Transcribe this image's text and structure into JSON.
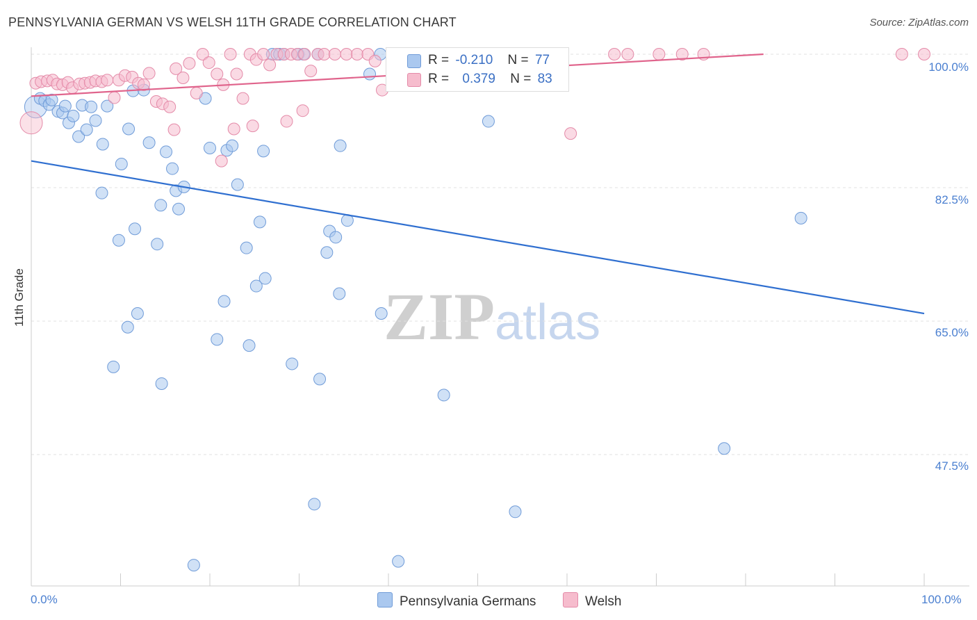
{
  "title": "PENNSYLVANIA GERMAN VS WELSH 11TH GRADE CORRELATION CHART",
  "source": "Source: ZipAtlas.com",
  "watermark": {
    "zip": "ZIP",
    "atlas": "atlas"
  },
  "legend": {
    "rows": [
      {
        "r_label": "R =",
        "r_value": "-0.210",
        "n_label": "N =",
        "n_value": "77"
      },
      {
        "r_label": "R =",
        "r_value": "0.379",
        "n_label": "N =",
        "n_value": "83"
      }
    ]
  },
  "bottom_legend": [
    "Pennsylvania Germans",
    "Welsh"
  ],
  "colors": {
    "blue_fill": "#aac8ef",
    "blue_stroke": "#6f9bd8",
    "blue_line": "#2f6fd0",
    "pink_fill": "#f6bccd",
    "pink_stroke": "#e48aa8",
    "pink_line": "#e0648c",
    "grid": "#e0e0e0",
    "tick_text": "#4a7fd0"
  },
  "chart_data": {
    "type": "scatter",
    "title": "PENNSYLVANIA GERMAN VS WELSH 11TH GRADE CORRELATION CHART",
    "xlabel": "",
    "ylabel": "11th Grade",
    "xlim": [
      0,
      100
    ],
    "ylim": [
      30,
      101
    ],
    "x_tick_labels": [
      "0.0%",
      "100.0%"
    ],
    "y_ticks": [
      100.0,
      82.5,
      65.0,
      47.5
    ],
    "y_tick_labels": [
      "100.0%",
      "82.5%",
      "65.0%",
      "47.5%"
    ],
    "grid": true,
    "legend_position": "top-center",
    "series": [
      {
        "name": "Pennsylvania Germans",
        "r": -0.21,
        "n": 77,
        "trend": {
          "x": [
            0,
            100
          ],
          "y": [
            86.0,
            66.0
          ]
        },
        "points": [
          [
            0.5,
            93.1
          ],
          [
            1.0,
            94.2
          ],
          [
            1.5,
            93.9
          ],
          [
            2.0,
            93.4
          ],
          [
            2.3,
            94.0
          ],
          [
            3.0,
            92.5
          ],
          [
            3.5,
            92.3
          ],
          [
            3.8,
            93.2
          ],
          [
            4.2,
            91.0
          ],
          [
            4.7,
            91.9
          ],
          [
            5.3,
            89.2
          ],
          [
            5.7,
            93.3
          ],
          [
            6.2,
            90.1
          ],
          [
            6.7,
            93.1
          ],
          [
            7.2,
            91.3
          ],
          [
            8.0,
            88.2
          ],
          [
            8.5,
            93.2
          ],
          [
            7.9,
            81.8
          ],
          [
            10.1,
            85.6
          ],
          [
            10.9,
            90.2
          ],
          [
            11.4,
            95.2
          ],
          [
            12.6,
            95.3
          ],
          [
            13.2,
            88.4
          ],
          [
            15.1,
            87.2
          ],
          [
            15.8,
            85.0
          ],
          [
            16.2,
            82.1
          ],
          [
            17.1,
            82.6
          ],
          [
            19.5,
            94.2
          ],
          [
            20.0,
            87.7
          ],
          [
            21.9,
            87.4
          ],
          [
            22.5,
            88.0
          ],
          [
            23.1,
            82.9
          ],
          [
            26.0,
            87.3
          ],
          [
            24.1,
            74.6
          ],
          [
            25.2,
            69.6
          ],
          [
            25.6,
            78.0
          ],
          [
            26.2,
            70.6
          ],
          [
            27.0,
            100.0
          ],
          [
            27.8,
            100.0
          ],
          [
            28.3,
            100.0
          ],
          [
            29.9,
            100.0
          ],
          [
            30.5,
            100.0
          ],
          [
            32.1,
            100.0
          ],
          [
            33.4,
            76.8
          ],
          [
            34.1,
            76.0
          ],
          [
            33.1,
            74.0
          ],
          [
            34.5,
            68.6
          ],
          [
            34.6,
            88.0
          ],
          [
            35.4,
            78.2
          ],
          [
            37.9,
            97.4
          ],
          [
            39.1,
            100.0
          ],
          [
            44.2,
            100.0
          ],
          [
            47.0,
            100.0
          ],
          [
            48.7,
            100.0
          ],
          [
            51.2,
            91.2
          ],
          [
            58.5,
            100.0
          ],
          [
            86.2,
            78.5
          ],
          [
            14.5,
            80.2
          ],
          [
            16.5,
            79.7
          ],
          [
            9.8,
            75.6
          ],
          [
            11.6,
            77.1
          ],
          [
            14.1,
            75.1
          ],
          [
            14.6,
            56.8
          ],
          [
            11.9,
            66.0
          ],
          [
            10.8,
            64.2
          ],
          [
            9.2,
            59.0
          ],
          [
            21.6,
            67.6
          ],
          [
            20.8,
            62.6
          ],
          [
            24.4,
            61.8
          ],
          [
            29.2,
            59.4
          ],
          [
            32.3,
            57.4
          ],
          [
            39.2,
            66.0
          ],
          [
            46.2,
            55.3
          ],
          [
            77.6,
            48.3
          ],
          [
            31.7,
            41.0
          ],
          [
            54.2,
            40.0
          ],
          [
            41.1,
            33.5
          ],
          [
            18.2,
            33.0
          ]
        ]
      },
      {
        "name": "Welsh",
        "r": 0.379,
        "n": 83,
        "trend": {
          "x": [
            0,
            82
          ],
          "y": [
            94.5,
            100.0
          ]
        },
        "points": [
          [
            0.0,
            91.0
          ],
          [
            0.5,
            96.2
          ],
          [
            1.1,
            96.4
          ],
          [
            1.8,
            96.5
          ],
          [
            2.4,
            96.6
          ],
          [
            2.9,
            96.1
          ],
          [
            3.5,
            96.0
          ],
          [
            4.1,
            96.3
          ],
          [
            4.6,
            95.6
          ],
          [
            5.4,
            96.1
          ],
          [
            6.0,
            96.2
          ],
          [
            6.6,
            96.3
          ],
          [
            7.2,
            96.5
          ],
          [
            7.9,
            96.4
          ],
          [
            8.5,
            96.6
          ],
          [
            9.3,
            94.3
          ],
          [
            9.8,
            96.6
          ],
          [
            10.5,
            97.2
          ],
          [
            11.3,
            97.0
          ],
          [
            12.0,
            96.2
          ],
          [
            12.6,
            96.0
          ],
          [
            13.2,
            97.5
          ],
          [
            14.0,
            93.8
          ],
          [
            14.7,
            93.5
          ],
          [
            15.5,
            93.1
          ],
          [
            16.2,
            98.1
          ],
          [
            17.0,
            96.9
          ],
          [
            17.7,
            98.8
          ],
          [
            18.5,
            94.9
          ],
          [
            19.2,
            100.0
          ],
          [
            19.9,
            98.9
          ],
          [
            20.8,
            97.4
          ],
          [
            21.5,
            96.0
          ],
          [
            22.3,
            100.0
          ],
          [
            23.0,
            97.4
          ],
          [
            23.7,
            94.2
          ],
          [
            24.5,
            100.0
          ],
          [
            25.2,
            99.3
          ],
          [
            26.0,
            100.0
          ],
          [
            26.7,
            98.6
          ],
          [
            27.5,
            100.0
          ],
          [
            28.3,
            100.0
          ],
          [
            29.1,
            100.0
          ],
          [
            29.8,
            100.0
          ],
          [
            30.6,
            100.0
          ],
          [
            31.3,
            97.8
          ],
          [
            32.1,
            100.0
          ],
          [
            32.8,
            100.0
          ],
          [
            34.0,
            100.0
          ],
          [
            35.3,
            100.0
          ],
          [
            36.5,
            100.0
          ],
          [
            37.7,
            100.0
          ],
          [
            38.5,
            99.1
          ],
          [
            39.3,
            95.3
          ],
          [
            40.6,
            100.0
          ],
          [
            41.8,
            100.0
          ],
          [
            43.0,
            100.0
          ],
          [
            44.3,
            100.0
          ],
          [
            45.6,
            100.0
          ],
          [
            46.8,
            100.0
          ],
          [
            47.9,
            100.0
          ],
          [
            49.2,
            100.0
          ],
          [
            50.3,
            100.0
          ],
          [
            51.6,
            100.0
          ],
          [
            53.0,
            100.0
          ],
          [
            54.2,
            100.0
          ],
          [
            55.5,
            100.0
          ],
          [
            56.8,
            100.0
          ],
          [
            57.9,
            100.0
          ],
          [
            65.3,
            100.0
          ],
          [
            66.8,
            100.0
          ],
          [
            70.3,
            100.0
          ],
          [
            72.9,
            100.0
          ],
          [
            75.3,
            100.0
          ],
          [
            97.5,
            100.0
          ],
          [
            100.0,
            100.0
          ],
          [
            22.7,
            90.2
          ],
          [
            24.8,
            90.6
          ],
          [
            21.3,
            86.0
          ],
          [
            28.6,
            91.2
          ],
          [
            30.4,
            92.6
          ],
          [
            60.4,
            89.6
          ],
          [
            16.0,
            90.1
          ]
        ]
      }
    ]
  }
}
